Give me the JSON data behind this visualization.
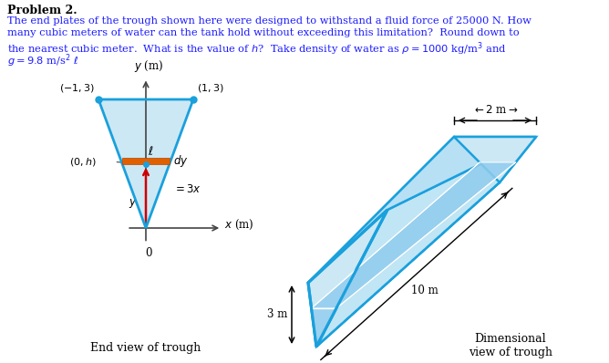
{
  "bg_color": "#ffffff",
  "text_color": "#1a1a1a",
  "blue_stroke": "#1aa0dc",
  "light_blue_fill": "#cce8f5",
  "mid_blue_fill": "#b0d8ee",
  "water_fill": "#a8d8f0",
  "orange_fill": "#e06000",
  "title": "Problem 2.",
  "line1": "The end plates of the trough shown here were designed to withstand a fluid force of 25000 N. How",
  "line2": "many cubic meters of water can the tank hold without exceeding this limitation?  Round down to",
  "line3": "the nearest cubic meter.  What is the value of $h$?  Take density of water as $\\rho = 1000$ kg/m$^3$ and",
  "line4": "$g = 9.8$ m/s$^2$ $\\ell$",
  "end_view_label": "End view of trough",
  "dim_view_label": "Dimensional\nview of trough"
}
